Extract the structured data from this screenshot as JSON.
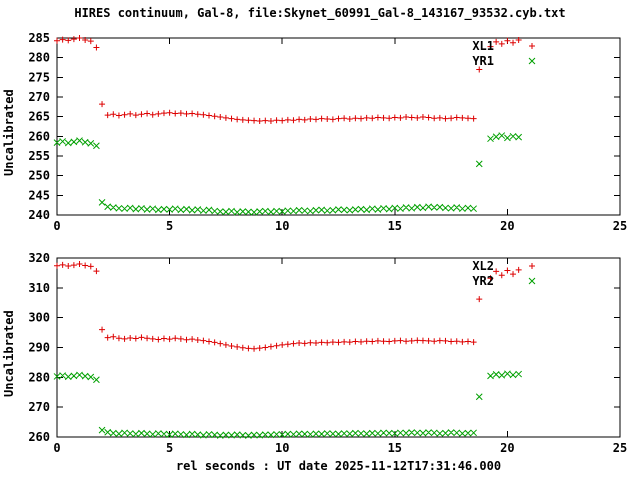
{
  "title": "HIRES continuum, Gal-8, file:Skynet_60991_Gal-8_143167_93532.cyb.txt",
  "xlabel": "rel seconds : UT date 2025-11-12T17:31:46.000",
  "colors": {
    "red": "#dd0000",
    "green": "#00a000",
    "axis": "#000000",
    "background": "#ffffff"
  },
  "chart_data": [
    {
      "type": "scatter",
      "ylabel": "Uncalibrated",
      "xlim": [
        0,
        25
      ],
      "ylim": [
        240,
        285
      ],
      "xticks": [
        0,
        5,
        10,
        15,
        20,
        25
      ],
      "yticks": [
        240,
        245,
        250,
        255,
        260,
        265,
        270,
        275,
        280,
        285
      ],
      "legend_position": "top-right-inside",
      "grid": false,
      "x": [
        0,
        0.25,
        0.5,
        0.75,
        1,
        1.25,
        1.5,
        1.75,
        2,
        2.25,
        2.5,
        2.75,
        3,
        3.25,
        3.5,
        3.75,
        4,
        4.25,
        4.5,
        4.75,
        5,
        5.25,
        5.5,
        5.75,
        6,
        6.25,
        6.5,
        6.75,
        7,
        7.25,
        7.5,
        7.75,
        8,
        8.25,
        8.5,
        8.75,
        9,
        9.25,
        9.5,
        9.75,
        10,
        10.25,
        10.5,
        10.75,
        11,
        11.25,
        11.5,
        11.75,
        12,
        12.25,
        12.5,
        12.75,
        13,
        13.25,
        13.5,
        13.75,
        14,
        14.25,
        14.5,
        14.75,
        15,
        15.25,
        15.5,
        15.75,
        16,
        16.25,
        16.5,
        16.75,
        17,
        17.25,
        17.5,
        17.75,
        18,
        18.25,
        18.5,
        18.75,
        19.25,
        19.5,
        19.75,
        20,
        20.25,
        20.5
      ],
      "series": [
        {
          "name": "XL1",
          "marker": "plus",
          "color": "#dd0000",
          "values": [
            284.3,
            284.6,
            284.4,
            284.7,
            285.0,
            284.5,
            284.2,
            282.6,
            268.2,
            265.4,
            265.6,
            265.3,
            265.5,
            265.7,
            265.4,
            265.6,
            265.8,
            265.5,
            265.7,
            265.9,
            266.0,
            265.8,
            265.9,
            265.7,
            265.8,
            265.6,
            265.5,
            265.3,
            265.1,
            264.9,
            264.7,
            264.5,
            264.3,
            264.2,
            264.1,
            264.0,
            263.9,
            264.0,
            263.9,
            264.1,
            264.0,
            264.2,
            264.1,
            264.3,
            264.2,
            264.4,
            264.3,
            264.5,
            264.4,
            264.3,
            264.5,
            264.6,
            264.4,
            264.6,
            264.5,
            264.7,
            264.6,
            264.8,
            264.7,
            264.6,
            264.8,
            264.7,
            264.9,
            264.8,
            264.7,
            264.9,
            264.8,
            264.6,
            264.7,
            264.5,
            264.6,
            264.8,
            264.7,
            264.6,
            264.5,
            277.0,
            282.8,
            284.0,
            283.5,
            284.3,
            283.8,
            284.5
          ]
        },
        {
          "name": "YR1",
          "marker": "cross",
          "color": "#00a000",
          "values": [
            258.4,
            258.7,
            258.3,
            258.6,
            258.9,
            258.5,
            258.2,
            257.6,
            243.2,
            242.1,
            241.9,
            241.7,
            241.6,
            241.8,
            241.5,
            241.7,
            241.4,
            241.6,
            241.3,
            241.5,
            241.4,
            241.6,
            241.3,
            241.5,
            241.2,
            241.4,
            241.1,
            241.3,
            241.0,
            240.9,
            240.8,
            241.0,
            240.7,
            240.9,
            240.8,
            240.7,
            240.9,
            241.0,
            240.8,
            241.0,
            240.9,
            241.1,
            241.0,
            241.2,
            241.1,
            241.0,
            241.2,
            241.3,
            241.1,
            241.2,
            241.4,
            241.3,
            241.2,
            241.4,
            241.5,
            241.3,
            241.6,
            241.4,
            241.7,
            241.5,
            241.8,
            241.6,
            241.9,
            241.7,
            242.0,
            241.8,
            242.1,
            241.9,
            242.0,
            241.8,
            241.7,
            241.9,
            241.6,
            241.8,
            241.6,
            253.0,
            259.4,
            259.9,
            260.2,
            259.6,
            260.0,
            259.8
          ]
        }
      ]
    },
    {
      "type": "scatter",
      "ylabel": "Uncalibrated",
      "xlim": [
        0,
        25
      ],
      "ylim": [
        260,
        320
      ],
      "xticks": [
        0,
        5,
        10,
        15,
        20,
        25
      ],
      "yticks": [
        260,
        270,
        280,
        290,
        300,
        310,
        320
      ],
      "legend_position": "top-right-inside",
      "grid": false,
      "x": [
        0,
        0.25,
        0.5,
        0.75,
        1,
        1.25,
        1.5,
        1.75,
        2,
        2.25,
        2.5,
        2.75,
        3,
        3.25,
        3.5,
        3.75,
        4,
        4.25,
        4.5,
        4.75,
        5,
        5.25,
        5.5,
        5.75,
        6,
        6.25,
        6.5,
        6.75,
        7,
        7.25,
        7.5,
        7.75,
        8,
        8.25,
        8.5,
        8.75,
        9,
        9.25,
        9.5,
        9.75,
        10,
        10.25,
        10.5,
        10.75,
        11,
        11.25,
        11.5,
        11.75,
        12,
        12.25,
        12.5,
        12.75,
        13,
        13.25,
        13.5,
        13.75,
        14,
        14.25,
        14.5,
        14.75,
        15,
        15.25,
        15.5,
        15.75,
        16,
        16.25,
        16.5,
        16.75,
        17,
        17.25,
        17.5,
        17.75,
        18,
        18.25,
        18.5,
        18.75,
        19.25,
        19.5,
        19.75,
        20,
        20.25,
        20.5
      ],
      "series": [
        {
          "name": "XL2",
          "marker": "plus",
          "color": "#dd0000",
          "values": [
            317.4,
            317.7,
            317.3,
            317.6,
            318.0,
            317.5,
            317.2,
            315.6,
            296.0,
            293.3,
            293.6,
            293.1,
            292.9,
            293.2,
            293.0,
            293.4,
            293.1,
            292.9,
            292.7,
            293.0,
            292.8,
            293.1,
            292.9,
            292.6,
            292.8,
            292.5,
            292.3,
            292.0,
            291.7,
            291.3,
            290.9,
            290.5,
            290.2,
            289.9,
            289.7,
            289.6,
            289.8,
            290.0,
            290.3,
            290.6,
            290.9,
            291.1,
            291.3,
            291.5,
            291.4,
            291.6,
            291.5,
            291.7,
            291.6,
            291.8,
            291.7,
            291.9,
            291.8,
            292.0,
            291.9,
            292.1,
            292.0,
            292.2,
            292.1,
            292.0,
            292.2,
            292.3,
            292.1,
            292.2,
            292.4,
            292.3,
            292.2,
            292.1,
            292.3,
            292.2,
            292.0,
            292.1,
            291.9,
            292.0,
            291.8,
            306.2,
            313.2,
            315.5,
            314.2,
            315.8,
            314.6,
            316.0
          ]
        },
        {
          "name": "YR2",
          "marker": "cross",
          "color": "#00a000",
          "values": [
            280.3,
            280.6,
            280.2,
            280.5,
            280.8,
            280.4,
            280.1,
            279.2,
            262.3,
            261.6,
            261.3,
            261.1,
            261.4,
            261.2,
            261.0,
            261.3,
            261.1,
            260.9,
            261.2,
            261.0,
            260.8,
            261.1,
            260.9,
            260.7,
            261.0,
            260.8,
            260.6,
            260.9,
            260.7,
            260.5,
            260.7,
            260.6,
            260.8,
            260.6,
            260.5,
            260.7,
            260.6,
            260.8,
            260.7,
            260.9,
            260.8,
            261.0,
            260.9,
            261.1,
            261.0,
            260.9,
            261.1,
            261.0,
            261.2,
            261.1,
            261.0,
            261.2,
            261.1,
            261.3,
            261.2,
            261.1,
            261.3,
            261.2,
            261.4,
            261.3,
            261.2,
            261.4,
            261.3,
            261.5,
            261.4,
            261.3,
            261.5,
            261.4,
            261.2,
            261.3,
            261.5,
            261.4,
            261.2,
            261.3,
            261.4,
            273.5,
            280.5,
            281.0,
            280.7,
            281.2,
            280.8,
            281.1
          ]
        }
      ]
    }
  ]
}
